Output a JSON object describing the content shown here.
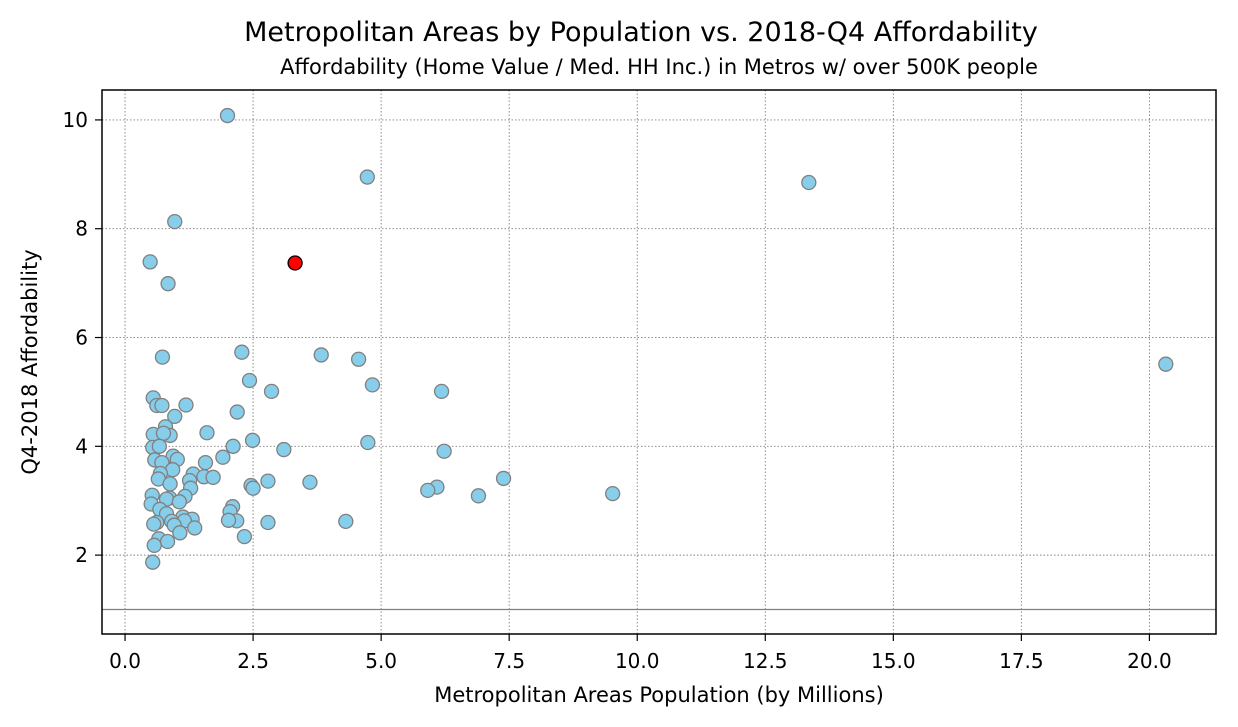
{
  "chart_data": {
    "type": "scatter",
    "title": "Metropolitan Areas by Population vs. 2018-Q4 Affordability",
    "subtitle": "Affordability (Home Value / Med. HH Inc.) in Metros w/ over 500K people",
    "xlabel": "Metropolitan Areas Population (by Millions)",
    "ylabel": "Q4-2018 Affordability",
    "xlim": [
      -0.45,
      21.3
    ],
    "ylim": [
      0.55,
      10.55
    ],
    "xticks": [
      0,
      2.5,
      5,
      7.5,
      10,
      12.5,
      15,
      17.5,
      20
    ],
    "xtick_labels": [
      "0.0",
      "2.5",
      "5.0",
      "7.5",
      "10.0",
      "12.5",
      "15.0",
      "17.5",
      "20.0"
    ],
    "yticks": [
      2,
      4,
      6,
      8,
      10
    ],
    "ytick_labels": [
      "2",
      "4",
      "6",
      "8",
      "10"
    ],
    "grid": true,
    "grid_style": "dotted",
    "reference_line_y": 1.0,
    "colors": {
      "point_fill": "#87ceeb",
      "point_edge": "#808080",
      "highlight_fill": "#ff0000",
      "highlight_edge": "#000000",
      "grid": "#808080",
      "reference_line": "#808080"
    },
    "series": [
      {
        "points": [
          [
            2.0,
            10.08
          ],
          [
            4.73,
            8.95
          ],
          [
            13.35,
            8.85
          ],
          [
            0.97,
            8.13
          ],
          [
            0.49,
            7.39
          ],
          [
            0.84,
            6.99
          ],
          [
            2.28,
            5.73
          ],
          [
            3.83,
            5.68
          ],
          [
            4.56,
            5.6
          ],
          [
            0.73,
            5.64
          ],
          [
            20.32,
            5.51
          ],
          [
            2.43,
            5.21
          ],
          [
            4.83,
            5.13
          ],
          [
            2.86,
            5.01
          ],
          [
            6.18,
            5.01
          ],
          [
            0.55,
            4.89
          ],
          [
            0.62,
            4.75
          ],
          [
            0.72,
            4.75
          ],
          [
            1.19,
            4.76
          ],
          [
            0.97,
            4.55
          ],
          [
            2.19,
            4.63
          ],
          [
            0.79,
            4.36
          ],
          [
            0.55,
            4.22
          ],
          [
            0.88,
            4.2
          ],
          [
            0.75,
            4.24
          ],
          [
            1.6,
            4.25
          ],
          [
            2.49,
            4.11
          ],
          [
            4.74,
            4.07
          ],
          [
            2.11,
            4.0
          ],
          [
            3.1,
            3.94
          ],
          [
            6.23,
            3.91
          ],
          [
            0.54,
            3.98
          ],
          [
            0.67,
            4.0
          ],
          [
            0.94,
            3.82
          ],
          [
            1.02,
            3.76
          ],
          [
            1.91,
            3.8
          ],
          [
            0.58,
            3.75
          ],
          [
            0.72,
            3.7
          ],
          [
            1.57,
            3.7
          ],
          [
            0.93,
            3.57
          ],
          [
            0.69,
            3.5
          ],
          [
            1.33,
            3.49
          ],
          [
            1.54,
            3.44
          ],
          [
            1.72,
            3.43
          ],
          [
            7.39,
            3.41
          ],
          [
            0.65,
            3.4
          ],
          [
            1.26,
            3.37
          ],
          [
            0.88,
            3.31
          ],
          [
            2.79,
            3.36
          ],
          [
            3.61,
            3.34
          ],
          [
            2.46,
            3.28
          ],
          [
            2.5,
            3.23
          ],
          [
            1.28,
            3.23
          ],
          [
            6.09,
            3.25
          ],
          [
            5.91,
            3.19
          ],
          [
            9.52,
            3.13
          ],
          [
            6.9,
            3.09
          ],
          [
            0.53,
            3.1
          ],
          [
            0.87,
            3.05
          ],
          [
            1.17,
            3.08
          ],
          [
            0.81,
            3.03
          ],
          [
            1.06,
            2.98
          ],
          [
            0.51,
            2.94
          ],
          [
            2.1,
            2.89
          ],
          [
            0.68,
            2.84
          ],
          [
            0.81,
            2.76
          ],
          [
            2.05,
            2.8
          ],
          [
            1.13,
            2.7
          ],
          [
            1.31,
            2.66
          ],
          [
            0.62,
            2.6
          ],
          [
            0.91,
            2.62
          ],
          [
            0.56,
            2.57
          ],
          [
            1.16,
            2.63
          ],
          [
            4.31,
            2.62
          ],
          [
            2.79,
            2.6
          ],
          [
            2.18,
            2.63
          ],
          [
            2.02,
            2.64
          ],
          [
            0.96,
            2.55
          ],
          [
            1.36,
            2.5
          ],
          [
            1.07,
            2.41
          ],
          [
            2.33,
            2.34
          ],
          [
            0.66,
            2.3
          ],
          [
            0.83,
            2.25
          ],
          [
            0.57,
            2.18
          ],
          [
            0.54,
            1.87
          ]
        ]
      },
      {
        "highlight": true,
        "points": [
          [
            3.32,
            7.37
          ]
        ]
      }
    ]
  }
}
